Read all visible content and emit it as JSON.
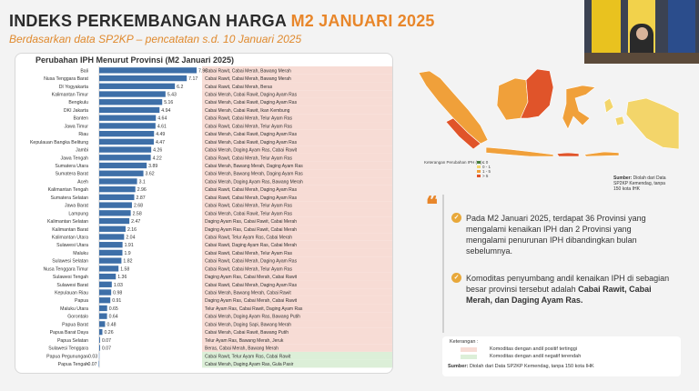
{
  "header": {
    "title_main": "INDEKS PERKEMBANGAN HARGA ",
    "title_accent": "M2 JANUARI 2025",
    "subtitle": "Berdasarkan data SP2KP – pencatatan s.d. 10 Januari 2025"
  },
  "chart_data": {
    "type": "bar",
    "orientation": "horizontal",
    "title": "Perubahan IPH Menurut Provinsi (M2 Januari 2025)",
    "categories": [
      "Bali",
      "Nusa Tenggara Barat",
      "DI Yogyakarta",
      "Kalimantan Timur",
      "Bengkulu",
      "DKI Jakarta",
      "Banten",
      "Jawa Timur",
      "Riau",
      "Kepulauan Bangka Belitung",
      "Jambi",
      "Jawa Tengah",
      "Sumatera Utara",
      "Sumatera Barat",
      "Aceh",
      "Kalimantan Tengah",
      "Sumatera Selatan",
      "Jawa Barat",
      "Lampung",
      "Kalimantan Selatan",
      "Kalimantan Barat",
      "Kalimantan Utara",
      "Sulawesi Utara",
      "Maluku",
      "Sulawesi Selatan",
      "Nusa Tenggara Timur",
      "Sulawesi Tengah",
      "Sulawesi Barat",
      "Kepulauan Riau",
      "Papua",
      "Maluku Utara",
      "Gorontalo",
      "Papua Barat",
      "Papua Barat Daya",
      "Papua Selatan",
      "Sulawesi Tenggara",
      "Papua Pegunungan",
      "Papua Tengah"
    ],
    "value_labels": [
      "7.98",
      "7.17",
      "6.2",
      "5.43",
      "5.16",
      "4.94",
      "4.64",
      "4.61",
      "4.49",
      "4.47",
      "4.26",
      "4.22",
      "3.89",
      "3.62",
      "3.1",
      "2.96",
      "2.87",
      "2.68",
      "2.58",
      "2.47",
      "2.16",
      "2.04",
      "1.91",
      "1.9",
      "1.82",
      "1.58",
      "1.36",
      "1.03",
      "0.98",
      "0.91",
      "0.65",
      "0.64",
      "0.48",
      "0.26",
      "0.07",
      "0.07",
      "-0.03",
      "-0.07"
    ],
    "values": [
      7.98,
      7.17,
      6.2,
      5.43,
      5.16,
      4.94,
      4.64,
      4.61,
      4.49,
      4.47,
      4.26,
      4.22,
      3.89,
      3.62,
      3.1,
      2.96,
      2.87,
      2.68,
      2.58,
      2.47,
      2.16,
      2.04,
      1.91,
      1.9,
      1.82,
      1.58,
      1.36,
      1.03,
      0.98,
      0.91,
      0.65,
      0.64,
      0.48,
      0.26,
      0.07,
      0.07,
      -0.03,
      -0.07
    ],
    "commodities": [
      "Cabai Rawit, Cabai Merah, Bawang Merah",
      "Cabai Rawit, Cabai Merah, Bawang Merah",
      "Cabai Rawit, Cabai Merah, Beras",
      "Cabai Merah, Cabai Rawit, Daging Ayam Ras",
      "Cabai Merah, Cabai Rawit, Daging Ayam Ras",
      "Cabai Merah, Cabai Rawit, Ikan Kembung",
      "Cabai Rawit, Cabai Merah, Telur Ayam Ras",
      "Cabai Rawit, Cabai Merah, Telur Ayam Ras",
      "Cabai Merah, Cabai Rawit, Daging Ayam Ras",
      "Cabai Merah, Cabai Rawit, Daging Ayam Ras",
      "Cabai Merah, Daging Ayam Ras, Cabai Rawit",
      "Cabai Rawit, Cabai Merah, Telur Ayam Ras",
      "Cabai Merah, Bawang Merah, Daging Ayam Ras",
      "Cabai Merah, Bawang Merah, Daging Ayam Ras",
      "Cabai Merah, Daging Ayam Ras, Bawang Merah",
      "Cabai Rawit, Cabai Merah, Daging Ayam Ras",
      "Cabai Rawit, Cabai Merah, Daging Ayam Ras",
      "Cabai Rawit, Cabai Merah, Telur Ayam Ras",
      "Cabai Merah, Cabai Rawit, Telur Ayam Ras",
      "Daging Ayam Ras, Cabai Rawit, Cabai Merah",
      "Daging Ayam Ras, Cabai Rawit, Cabai Merah",
      "Cabai Rawit, Telur Ayam Ras, Cabai Merah",
      "Cabai Rawit, Daging Ayam Ras, Cabai Merah",
      "Cabai Rawit, Cabai Merah, Telur Ayam Ras",
      "Cabai Rawit, Cabai Merah, Daging Ayam Ras",
      "Cabai Rawit, Cabai Merah, Telur Ayam Ras",
      "Daging Ayam Ras, Cabai Merah, Cabai Rawit",
      "Cabai Rawit, Cabai Merah, Daging Ayam Ras",
      "Cabai Merah, Bawang Merah, Cabai Rawit",
      "Daging Ayam Ras, Cabai Merah, Cabai Rawit",
      "Telur Ayam Ras, Cabai Rawit, Daging Ayam Ras",
      "Cabai Merah, Daging Ayam Ras, Bawang Putih",
      "Cabai Merah, Daging Sapi, Bawang Merah",
      "Cabai Merah, Cabai Rawit, Bawang Putih",
      "Telur Ayam Ras, Bawang Merah, Jeruk",
      "Beras, Cabai Merah, Bawang Merah",
      "Cabai Rawit, Telur Ayam Ras, Cabai Rawit",
      "Cabai Merah, Daging Ayam Ras, Gula Pasir"
    ],
    "xlim": [
      -0.1,
      8.2
    ],
    "grid": false,
    "colors": {
      "bar": "#3e6fa8",
      "bar_neg": "#9bb6d6",
      "positive_bg": "#f7dcd5",
      "negative_bg": "#dcefd8"
    }
  },
  "map": {
    "legend_title": "Keterangan Perubahan IPH (%):",
    "legend": [
      {
        "label": "≤ 0",
        "color": "#4a9a3c"
      },
      {
        "label": "0 - 1",
        "color": "#f3d56a"
      },
      {
        "label": "1 - 5",
        "color": "#f0a03a"
      },
      {
        "label": "> 5",
        "color": "#e0542a"
      }
    ],
    "source_label": "Sumber:",
    "source_text": "Diolah dari Data SP2KP Kemendag, tanpa 150 kota IHK"
  },
  "info": {
    "p1": "Pada M2 Januari 2025, terdapat 36 Provinsi yang mengalami kenaikan IPH dan 2 Provinsi yang mengalami penurunan IPH dibandingkan bulan sebelumnya.",
    "p2_lead": "Komoditas penyumbang andil kenaikan IPH di sebagian besar provinsi tersebut adalah ",
    "p2_bold": "Cabai Rawit, Cabai Merah, dan Daging Ayam Ras.",
    "tick_glyph": "✓"
  },
  "keterangan": {
    "title": "Keterangan :",
    "items": [
      {
        "label": "Komoditas dengan andil positif tertinggi",
        "color": "#f7dcd5"
      },
      {
        "label": "Komoditas dengan andil negatif terendah",
        "color": "#dcefd8"
      }
    ],
    "source_label": "Sumber:",
    "source_text": "Diolah dari Data SP2KP Kemendag, tanpa 150 kota IHK"
  }
}
